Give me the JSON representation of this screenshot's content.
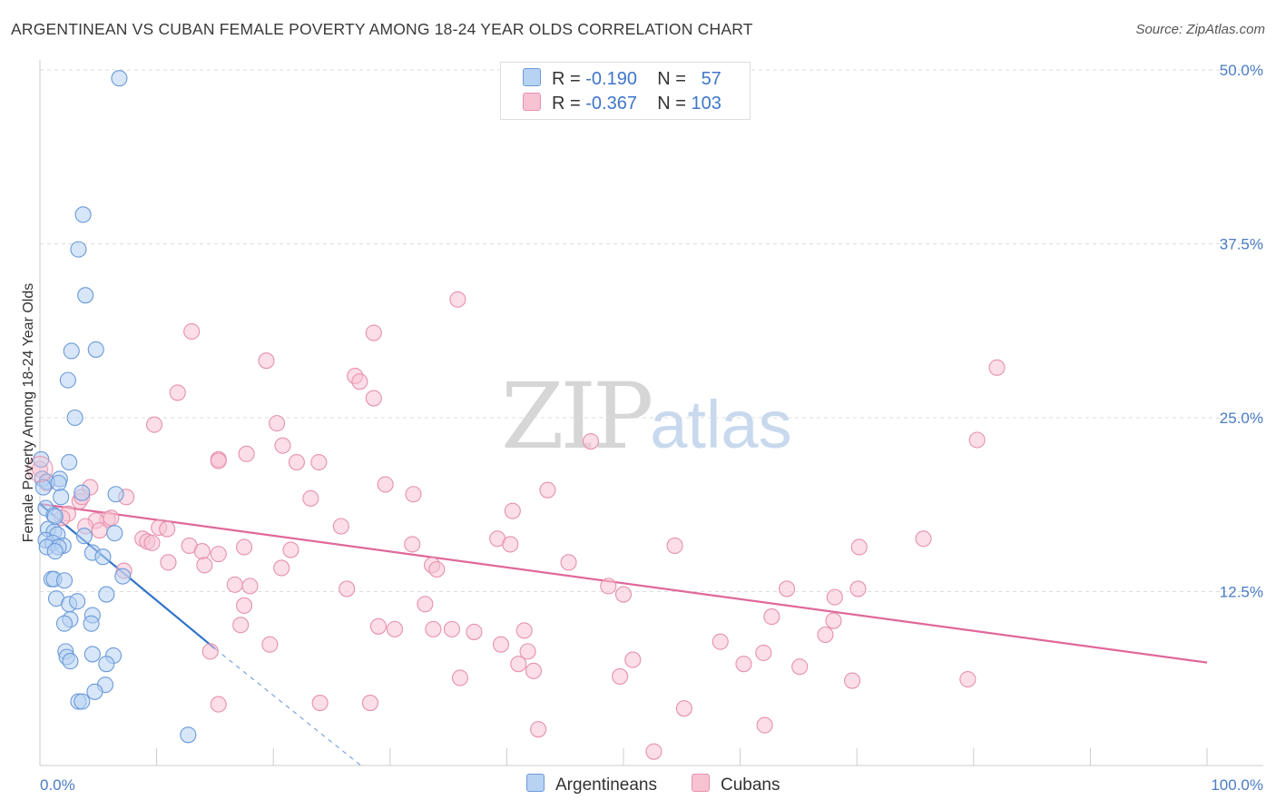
{
  "header": {
    "title": "ARGENTINEAN VS CUBAN FEMALE POVERTY AMONG 18-24 YEAR OLDS CORRELATION CHART",
    "source": "Source: ZipAtlas.com"
  },
  "watermark": {
    "zip": "ZIP",
    "atlas": "atlas"
  },
  "legend": {
    "r_label": "R =",
    "n_label": "N =",
    "rows": [
      {
        "r": "-0.190",
        "n": "57"
      },
      {
        "r": "-0.367",
        "n": "103"
      }
    ]
  },
  "bottom_legend": {
    "argentineans": "Argentineans",
    "cubans": "Cubans"
  },
  "colors": {
    "argentineans_fill": "#b7d2f2",
    "argentineans_stroke": "#6b9ad9",
    "argentineans_line": "#2f72c8",
    "cubans_fill": "#f7c3d3",
    "cubans_stroke": "#e691ad",
    "cubans_line": "#e0689a",
    "tick_label": "#4a7cc4",
    "grid": "#dddddd"
  },
  "chart_data": {
    "type": "scatter",
    "title": "ARGENTINEAN VS CUBAN FEMALE POVERTY AMONG 18-24 YEAR OLDS CORRELATION CHART",
    "xlabel": "",
    "ylabel": "Female Poverty Among 18-24 Year Olds",
    "xlim": [
      0,
      100
    ],
    "ylim": [
      0,
      50
    ],
    "x_tick_labels": [
      "0.0%",
      "100.0%"
    ],
    "y_ticks": [
      12.5,
      25.0,
      37.5,
      50.0
    ],
    "y_tick_labels": [
      "12.5%",
      "25.0%",
      "37.5%",
      "50.0%"
    ],
    "grid": true,
    "legend_position": "top-center",
    "series": [
      {
        "name": "Argentineans",
        "r": -0.19,
        "n": 57,
        "points": [
          [
            6.8,
            49.4
          ],
          [
            3.7,
            39.6
          ],
          [
            3.3,
            37.1
          ],
          [
            3.9,
            33.8
          ],
          [
            2.7,
            29.8
          ],
          [
            4.8,
            29.9
          ],
          [
            2.4,
            27.7
          ],
          [
            3.0,
            25.0
          ],
          [
            0.1,
            22.0
          ],
          [
            2.5,
            21.8
          ],
          [
            0.2,
            20.6
          ],
          [
            1.7,
            20.6
          ],
          [
            0.6,
            20.4
          ],
          [
            1.6,
            20.3
          ],
          [
            0.3,
            20.0
          ],
          [
            3.6,
            19.6
          ],
          [
            6.5,
            19.5
          ],
          [
            1.8,
            19.3
          ],
          [
            0.5,
            18.5
          ],
          [
            1.2,
            18.0
          ],
          [
            1.3,
            17.9
          ],
          [
            0.7,
            17.0
          ],
          [
            1.2,
            16.8
          ],
          [
            1.5,
            16.6
          ],
          [
            3.8,
            16.5
          ],
          [
            6.4,
            16.7
          ],
          [
            0.5,
            16.2
          ],
          [
            1.1,
            16.0
          ],
          [
            0.6,
            15.7
          ],
          [
            2.0,
            15.8
          ],
          [
            1.6,
            15.7
          ],
          [
            1.3,
            15.4
          ],
          [
            4.5,
            15.3
          ],
          [
            5.4,
            15.0
          ],
          [
            1.0,
            13.4
          ],
          [
            1.2,
            13.4
          ],
          [
            2.1,
            13.3
          ],
          [
            7.1,
            13.6
          ],
          [
            5.7,
            12.3
          ],
          [
            1.4,
            12.0
          ],
          [
            2.5,
            11.6
          ],
          [
            3.2,
            11.8
          ],
          [
            4.5,
            10.8
          ],
          [
            2.6,
            10.5
          ],
          [
            2.1,
            10.2
          ],
          [
            4.4,
            10.2
          ],
          [
            2.2,
            8.2
          ],
          [
            4.5,
            8.0
          ],
          [
            6.3,
            7.9
          ],
          [
            2.3,
            7.8
          ],
          [
            2.6,
            7.5
          ],
          [
            5.7,
            7.3
          ],
          [
            5.6,
            5.8
          ],
          [
            4.7,
            5.3
          ],
          [
            3.3,
            4.6
          ],
          [
            3.6,
            4.6
          ],
          [
            12.7,
            2.2
          ]
        ],
        "trend": {
          "x1": 0.0,
          "y1": 18.8,
          "x2": 15.0,
          "y2": 8.4
        },
        "trend_extension": {
          "x1": 15.0,
          "y1": 8.4,
          "x2": 27.5,
          "y2": 0.0
        }
      },
      {
        "name": "Cubans",
        "r": -0.367,
        "n": 103,
        "points": [
          [
            0.0,
            21.3
          ],
          [
            0.6,
            20.3
          ],
          [
            3.4,
            19.0
          ],
          [
            3.6,
            19.3
          ],
          [
            4.3,
            20.0
          ],
          [
            7.4,
            19.3
          ],
          [
            2.4,
            18.1
          ],
          [
            1.9,
            17.8
          ],
          [
            5.8,
            17.7
          ],
          [
            4.8,
            17.6
          ],
          [
            6.1,
            17.8
          ],
          [
            3.9,
            17.2
          ],
          [
            5.1,
            16.9
          ],
          [
            10.2,
            17.1
          ],
          [
            8.8,
            16.3
          ],
          [
            9.2,
            16.1
          ],
          [
            9.6,
            16.0
          ],
          [
            10.9,
            17.0
          ],
          [
            12.8,
            15.8
          ],
          [
            17.5,
            15.7
          ],
          [
            13.9,
            15.4
          ],
          [
            21.5,
            15.5
          ],
          [
            11.0,
            14.6
          ],
          [
            14.1,
            14.4
          ],
          [
            15.3,
            15.2
          ],
          [
            16.7,
            13.0
          ],
          [
            18.0,
            12.9
          ],
          [
            20.7,
            14.2
          ],
          [
            9.8,
            24.5
          ],
          [
            11.8,
            26.8
          ],
          [
            13.0,
            31.2
          ],
          [
            15.3,
            22.0
          ],
          [
            17.7,
            22.4
          ],
          [
            19.4,
            29.1
          ],
          [
            20.3,
            24.6
          ],
          [
            20.8,
            23.0
          ],
          [
            22.0,
            21.8
          ],
          [
            23.9,
            21.8
          ],
          [
            23.2,
            19.2
          ],
          [
            25.8,
            17.2
          ],
          [
            26.3,
            12.7
          ],
          [
            27.0,
            28.0
          ],
          [
            27.4,
            27.6
          ],
          [
            28.6,
            26.4
          ],
          [
            28.6,
            31.1
          ],
          [
            29.0,
            10.0
          ],
          [
            29.6,
            20.2
          ],
          [
            30.4,
            9.8
          ],
          [
            32.0,
            19.5
          ],
          [
            31.9,
            15.9
          ],
          [
            33.0,
            11.6
          ],
          [
            33.6,
            14.4
          ],
          [
            34.0,
            14.1
          ],
          [
            33.7,
            9.8
          ],
          [
            35.3,
            9.8
          ],
          [
            35.8,
            33.5
          ],
          [
            36.0,
            6.3
          ],
          [
            37.2,
            9.6
          ],
          [
            39.2,
            16.3
          ],
          [
            39.5,
            8.7
          ],
          [
            40.5,
            18.3
          ],
          [
            40.3,
            15.9
          ],
          [
            41.0,
            7.3
          ],
          [
            41.5,
            9.7
          ],
          [
            41.8,
            8.2
          ],
          [
            42.3,
            6.8
          ],
          [
            42.7,
            2.6
          ],
          [
            43.5,
            19.8
          ],
          [
            45.3,
            14.6
          ],
          [
            47.2,
            23.3
          ],
          [
            48.7,
            12.9
          ],
          [
            49.7,
            6.4
          ],
          [
            50.0,
            12.3
          ],
          [
            50.8,
            7.6
          ],
          [
            52.6,
            1.0
          ],
          [
            54.4,
            15.8
          ],
          [
            55.2,
            4.1
          ],
          [
            58.3,
            8.9
          ],
          [
            60.3,
            7.3
          ],
          [
            62.1,
            2.9
          ],
          [
            62.0,
            8.1
          ],
          [
            62.7,
            10.7
          ],
          [
            64.0,
            12.7
          ],
          [
            65.1,
            7.1
          ],
          [
            67.3,
            9.4
          ],
          [
            68.0,
            10.4
          ],
          [
            68.1,
            12.1
          ],
          [
            69.6,
            6.1
          ],
          [
            70.1,
            12.7
          ],
          [
            70.2,
            15.7
          ],
          [
            75.7,
            16.3
          ],
          [
            79.5,
            6.2
          ],
          [
            80.3,
            23.4
          ],
          [
            82.0,
            28.6
          ],
          [
            14.6,
            8.2
          ],
          [
            15.3,
            4.4
          ],
          [
            17.2,
            10.1
          ],
          [
            19.7,
            8.7
          ],
          [
            24.0,
            4.5
          ],
          [
            28.3,
            4.5
          ],
          [
            15.3,
            21.9
          ],
          [
            17.5,
            11.5
          ],
          [
            7.2,
            14.0
          ]
        ],
        "trend": {
          "x1": 0.0,
          "y1": 18.8,
          "x2": 100.0,
          "y2": 7.4
        }
      }
    ]
  }
}
